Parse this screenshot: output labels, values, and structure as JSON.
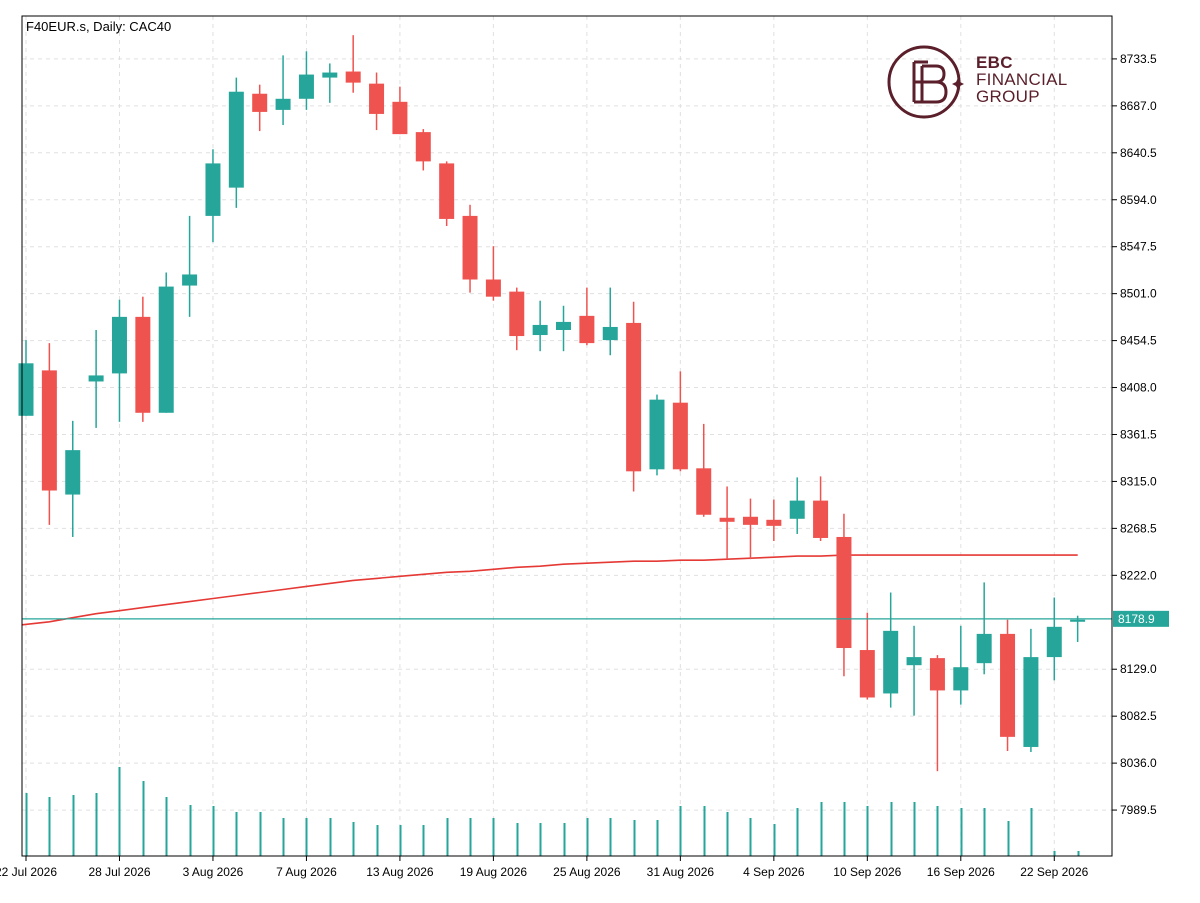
{
  "header": {
    "title": "F40EUR.s, Daily:  CAC40"
  },
  "brand": {
    "line1": "EBC",
    "line2": "FINANCIAL",
    "line3": "GROUP",
    "color": "#5a1f2a"
  },
  "colors": {
    "bull": "#26a69a",
    "bear": "#ef5350",
    "ma": "#e53935",
    "price_line": "#26a69a",
    "volume": "#26a69a",
    "grid": "#e0e0e0"
  },
  "chart_data": {
    "type": "candlestick",
    "symbol": "F40EUR.s",
    "timeframe": "Daily",
    "y_ticks": [
      "8733.5",
      "8687.0",
      "8640.5",
      "8594.0",
      "8547.5",
      "8501.0",
      "8454.5",
      "8408.0",
      "8361.5",
      "8315.0",
      "8268.5",
      "8222.0",
      "8129.0",
      "8082.5",
      "8036.0",
      "7989.5"
    ],
    "y_tick_values": [
      8733.5,
      8687.0,
      8640.5,
      8594.0,
      8547.5,
      8501.0,
      8454.5,
      8408.0,
      8361.5,
      8315.0,
      8268.5,
      8222.0,
      8129.0,
      8082.5,
      8036.0,
      7989.5
    ],
    "ylim": [
      7944,
      8776
    ],
    "x_ticks": [
      {
        "label": "22 Jul 2026",
        "index": 0
      },
      {
        "label": "28 Jul 2026",
        "index": 4
      },
      {
        "label": "3 Aug 2026",
        "index": 8
      },
      {
        "label": "7 Aug 2026",
        "index": 12
      },
      {
        "label": "13 Aug 2026",
        "index": 16
      },
      {
        "label": "19 Aug 2026",
        "index": 20
      },
      {
        "label": "25 Aug 2026",
        "index": 24
      },
      {
        "label": "31 Aug 2026",
        "index": 28
      },
      {
        "label": "4 Sep 2026",
        "index": 32
      },
      {
        "label": "10 Sep 2026",
        "index": 36
      },
      {
        "label": "16 Sep 2026",
        "index": 40
      },
      {
        "label": "22 Sep 2026",
        "index": 44
      }
    ],
    "current_price": "8178.9",
    "current_price_value": 8178.9,
    "candles": [
      {
        "o": 8380,
        "h": 8455,
        "l": 8380,
        "c": 8432
      },
      {
        "o": 8425,
        "h": 8452,
        "l": 8272,
        "c": 8306
      },
      {
        "o": 8302,
        "h": 8375,
        "l": 8260,
        "c": 8346
      },
      {
        "o": 8414,
        "h": 8465,
        "l": 8368,
        "c": 8420
      },
      {
        "o": 8422,
        "h": 8495,
        "l": 8374,
        "c": 8478
      },
      {
        "o": 8478,
        "h": 8498,
        "l": 8374,
        "c": 8383
      },
      {
        "o": 8383,
        "h": 8522,
        "l": 8383,
        "c": 8508
      },
      {
        "o": 8509,
        "h": 8578,
        "l": 8478,
        "c": 8520
      },
      {
        "o": 8578,
        "h": 8644,
        "l": 8552,
        "c": 8630
      },
      {
        "o": 8606,
        "h": 8715,
        "l": 8586,
        "c": 8701
      },
      {
        "o": 8699,
        "h": 8708,
        "l": 8662,
        "c": 8681
      },
      {
        "o": 8683,
        "h": 8737,
        "l": 8668,
        "c": 8694
      },
      {
        "o": 8694,
        "h": 8741,
        "l": 8683,
        "c": 8718
      },
      {
        "o": 8715,
        "h": 8729,
        "l": 8690,
        "c": 8720
      },
      {
        "o": 8721,
        "h": 8757,
        "l": 8700,
        "c": 8710
      },
      {
        "o": 8709,
        "h": 8720,
        "l": 8663,
        "c": 8679
      },
      {
        "o": 8691,
        "h": 8706,
        "l": 8659,
        "c": 8659
      },
      {
        "o": 8661,
        "h": 8664,
        "l": 8623,
        "c": 8632
      },
      {
        "o": 8630,
        "h": 8632,
        "l": 8568,
        "c": 8575
      },
      {
        "o": 8578,
        "h": 8589,
        "l": 8502,
        "c": 8515
      },
      {
        "o": 8515,
        "h": 8548,
        "l": 8494,
        "c": 8498
      },
      {
        "o": 8503,
        "h": 8507,
        "l": 8445,
        "c": 8459
      },
      {
        "o": 8460,
        "h": 8494,
        "l": 8444,
        "c": 8470
      },
      {
        "o": 8465,
        "h": 8489,
        "l": 8444,
        "c": 8473
      },
      {
        "o": 8479,
        "h": 8507,
        "l": 8450,
        "c": 8452
      },
      {
        "o": 8455,
        "h": 8507,
        "l": 8440,
        "c": 8468
      },
      {
        "o": 8472,
        "h": 8493,
        "l": 8305,
        "c": 8325
      },
      {
        "o": 8327,
        "h": 8401,
        "l": 8321,
        "c": 8396
      },
      {
        "o": 8393,
        "h": 8424,
        "l": 8325,
        "c": 8327
      },
      {
        "o": 8328,
        "h": 8372,
        "l": 8280,
        "c": 8282
      },
      {
        "o": 8279,
        "h": 8310,
        "l": 8238,
        "c": 8275
      },
      {
        "o": 8280,
        "h": 8298,
        "l": 8238,
        "c": 8272
      },
      {
        "o": 8277,
        "h": 8297,
        "l": 8256,
        "c": 8271
      },
      {
        "o": 8278,
        "h": 8319,
        "l": 8263,
        "c": 8296
      },
      {
        "o": 8296,
        "h": 8320,
        "l": 8256,
        "c": 8259
      },
      {
        "o": 8260,
        "h": 8283,
        "l": 8122,
        "c": 8150
      },
      {
        "o": 8148,
        "h": 8185,
        "l": 8099,
        "c": 8101
      },
      {
        "o": 8105,
        "h": 8205,
        "l": 8091,
        "c": 8167
      },
      {
        "o": 8133,
        "h": 8172,
        "l": 8083,
        "c": 8141
      },
      {
        "o": 8140,
        "h": 8143,
        "l": 8028,
        "c": 8108
      },
      {
        "o": 8108,
        "h": 8172,
        "l": 8094,
        "c": 8131
      },
      {
        "o": 8135,
        "h": 8215,
        "l": 8124,
        "c": 8164
      },
      {
        "o": 8164,
        "h": 8178,
        "l": 8048,
        "c": 8062
      },
      {
        "o": 8052,
        "h": 8169,
        "l": 8047,
        "c": 8141
      },
      {
        "o": 8141,
        "h": 8200,
        "l": 8118,
        "c": 8171
      },
      {
        "o": 8176,
        "h": 8182,
        "l": 8156,
        "c": 8178
      }
    ],
    "volumes": [
      0.63,
      0.59,
      0.61,
      0.63,
      0.89,
      0.75,
      0.59,
      0.51,
      0.5,
      0.44,
      0.44,
      0.38,
      0.38,
      0.38,
      0.34,
      0.31,
      0.31,
      0.31,
      0.38,
      0.38,
      0.38,
      0.33,
      0.33,
      0.33,
      0.38,
      0.38,
      0.36,
      0.36,
      0.5,
      0.5,
      0.44,
      0.38,
      0.32,
      0.48,
      0.54,
      0.54,
      0.5,
      0.54,
      0.54,
      0.5,
      0.48,
      0.48,
      0.35,
      0.48,
      0.05,
      0.05
    ],
    "moving_average": [
      8173,
      8176,
      8180,
      8184,
      8187,
      8190,
      8193,
      8196,
      8199,
      8202,
      8205,
      8208,
      8211,
      8214,
      8217,
      8219,
      8221,
      8223,
      8225,
      8226,
      8228,
      8230,
      8231,
      8233,
      8234,
      8235,
      8236,
      8236,
      8237,
      8237,
      8238,
      8239,
      8240,
      8241,
      8241,
      8242,
      8242,
      8242,
      8242,
      8242,
      8242,
      8242,
      8242,
      8242,
      8242,
      8242
    ]
  }
}
